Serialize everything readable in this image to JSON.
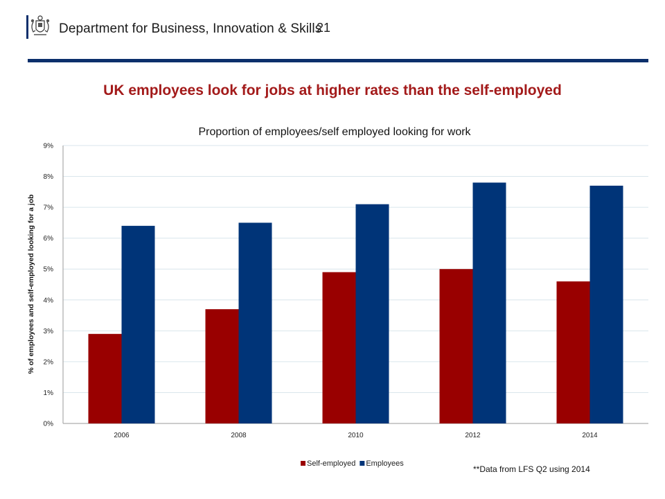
{
  "header": {
    "department": "Department for Business, Innovation & Skills",
    "page_number": "21",
    "rule_color": "#0b2f6b",
    "logo_icon": "royal-coat-of-arms-icon"
  },
  "slide": {
    "title": "UK employees look for jobs at higher rates than the self-employed",
    "footnote": "**Data from LFS Q2 using 2014"
  },
  "chart_data": {
    "type": "bar",
    "title": "Proportion of employees/self employed looking for work",
    "xlabel": "",
    "ylabel": "% of employees and self-employed looking for a job",
    "categories": [
      "2006",
      "2008",
      "2010",
      "2012",
      "2014"
    ],
    "series": [
      {
        "name": "Self-employed",
        "color": "#990000",
        "values": [
          2.9,
          3.7,
          4.9,
          5.0,
          4.6
        ]
      },
      {
        "name": "Employees",
        "color": "#003478",
        "values": [
          6.4,
          6.5,
          7.1,
          7.8,
          7.7
        ]
      }
    ],
    "ylim": [
      0,
      9
    ],
    "yticks": [
      "0%",
      "1%",
      "2%",
      "3%",
      "4%",
      "5%",
      "6%",
      "7%",
      "8%",
      "9%"
    ],
    "grid": true,
    "legend": "bottom"
  }
}
